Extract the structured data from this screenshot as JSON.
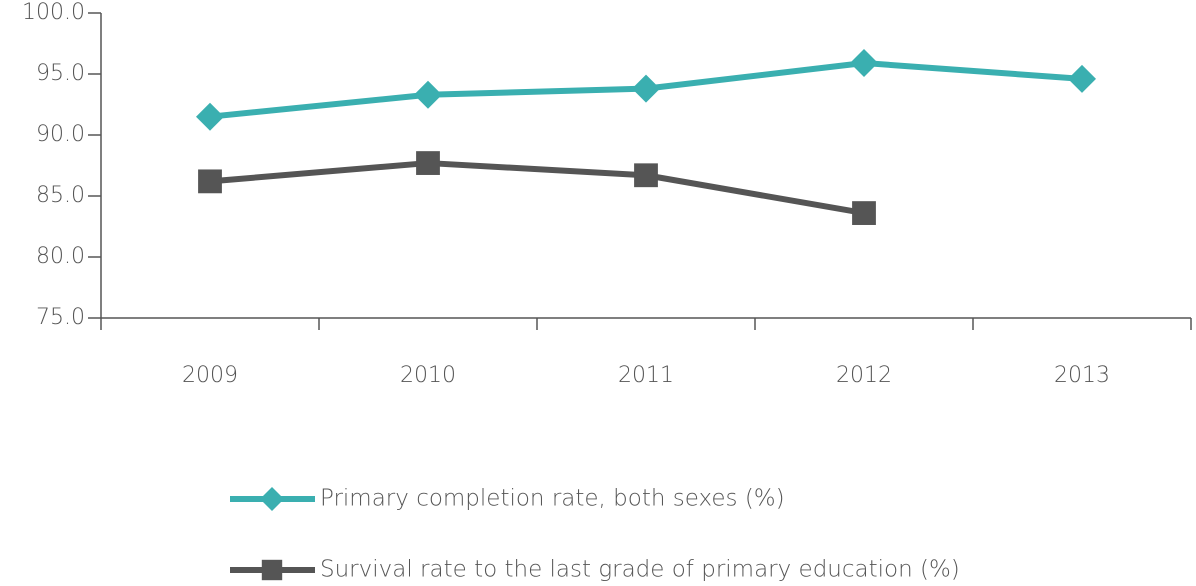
{
  "chart_data": {
    "type": "line",
    "categories": [
      "2009",
      "2010",
      "2011",
      "2012",
      "2013"
    ],
    "series": [
      {
        "name": "Primary completion rate, both sexes (%)",
        "color": "#3aafb0",
        "marker": "diamond",
        "values": [
          91.5,
          93.3,
          93.8,
          95.9,
          94.6
        ]
      },
      {
        "name": "Survival rate to the last grade of primary education (%)",
        "color": "#555555",
        "marker": "square",
        "values": [
          86.2,
          87.7,
          86.7,
          83.6,
          null
        ]
      }
    ],
    "ylim": [
      75,
      100
    ],
    "yticks": [
      {
        "value": 75,
        "label": "75.0"
      },
      {
        "value": 80,
        "label": "80.0"
      },
      {
        "value": 85,
        "label": "85.0"
      },
      {
        "value": 90,
        "label": "90.0"
      },
      {
        "value": 95,
        "label": "95.0"
      },
      {
        "value": 100,
        "label": "100.0"
      }
    ],
    "legend": "bottom"
  }
}
